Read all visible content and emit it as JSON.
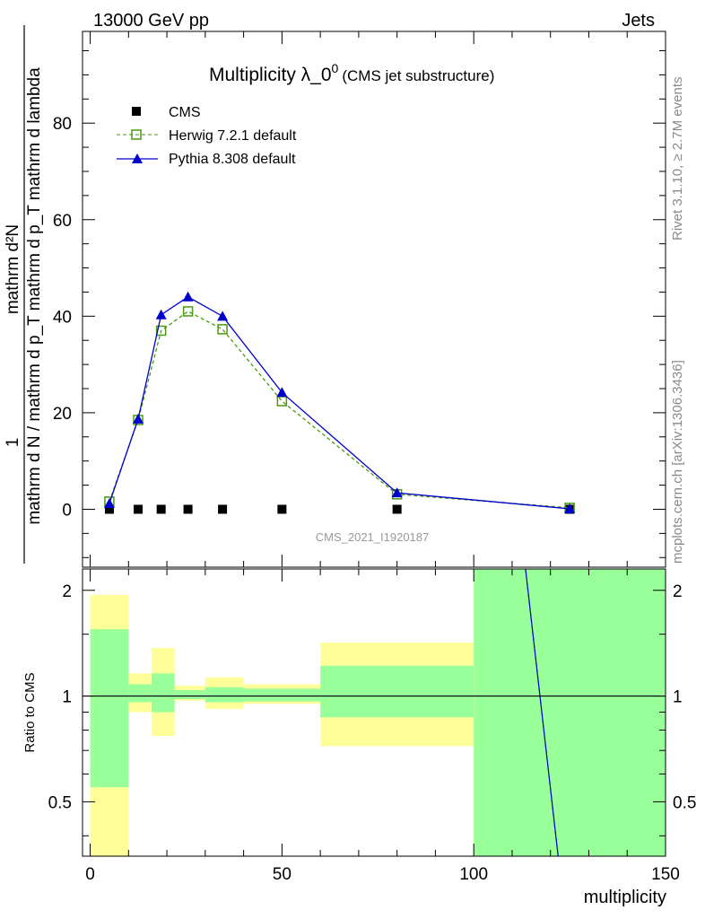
{
  "header": {
    "energy_label": "13000 GeV pp",
    "category_label": "Jets",
    "watermark": "CMS_2021_I1920187",
    "side_label_top": "Rivet 3.1.10, ≥ 2.7M events",
    "side_label_bottom": "mcplots.cern.ch [arXiv:1306.3436]"
  },
  "chart_data": [
    {
      "type": "line",
      "title": "Multiplicity λ_0",
      "title_superscript": "0",
      "subtitle": "(CMS jet substructure)",
      "ylabel_numerator": "1",
      "ylabel_denominator": "mathrm d N / mathrm d p_T mathrm d p_T mathrm d lambda",
      "ylabel_top": "mathrm d²N",
      "xlim": [
        -2,
        150
      ],
      "ylim": [
        -12,
        99
      ],
      "yticks": [
        0,
        20,
        40,
        60,
        80
      ],
      "legend_position": "top-left",
      "series": [
        {
          "name": "CMS",
          "marker": "filled-square",
          "color": "#000000",
          "x": [
            5,
            12.5,
            18.5,
            25.5,
            34.5,
            50,
            80,
            125
          ],
          "y": [
            0,
            0,
            0,
            0,
            0,
            0,
            0,
            0
          ]
        },
        {
          "name": "Herwig 7.2.1 default",
          "marker": "open-square",
          "line": "dashed",
          "color": "#4a9a10",
          "x": [
            5,
            12.5,
            18.5,
            25.5,
            34.5,
            50,
            80,
            125
          ],
          "y": [
            1.6,
            18.5,
            37.0,
            41.0,
            37.3,
            22.4,
            3.1,
            0.3
          ]
        },
        {
          "name": "Pythia 8.308 default",
          "marker": "filled-triangle",
          "line": "solid",
          "color": "#0000cc",
          "x": [
            5,
            12.5,
            18.5,
            25.5,
            34.5,
            50,
            80,
            125
          ],
          "y": [
            1.2,
            18.7,
            40.3,
            44.0,
            40.0,
            24.2,
            3.4,
            0.1
          ]
        }
      ]
    },
    {
      "type": "area",
      "ylabel": "Ratio to CMS",
      "xlabel": "multiplicity",
      "xlim": [
        -2,
        150
      ],
      "ylim": [
        0.35,
        2.3
      ],
      "xticks": [
        0,
        50,
        100,
        150
      ],
      "yticks": [
        0.5,
        1,
        2
      ],
      "reference_line": 1,
      "bands": [
        {
          "x0": 0,
          "x1": 10,
          "y2_lo": 0.0,
          "y2_hi": 1.94,
          "y1_lo": 0.55,
          "y1_hi": 1.55
        },
        {
          "x0": 10,
          "x1": 16,
          "y2_lo": 0.9,
          "y2_hi": 1.16,
          "y1_lo": 0.96,
          "y1_hi": 1.08
        },
        {
          "x0": 16,
          "x1": 22,
          "y2_lo": 0.77,
          "y2_hi": 1.37,
          "y1_lo": 0.9,
          "y1_hi": 1.16
        },
        {
          "x0": 22,
          "x1": 30,
          "y2_lo": 0.97,
          "y2_hi": 1.07,
          "y1_lo": 0.98,
          "y1_hi": 1.04
        },
        {
          "x0": 30,
          "x1": 40,
          "y2_lo": 0.92,
          "y2_hi": 1.13,
          "y1_lo": 0.96,
          "y1_hi": 1.06
        },
        {
          "x0": 40,
          "x1": 60,
          "y2_lo": 0.95,
          "y2_hi": 1.08,
          "y1_lo": 0.965,
          "y1_hi": 1.05
        },
        {
          "x0": 60,
          "x1": 100,
          "y2_lo": 0.72,
          "y2_hi": 1.42,
          "y1_lo": 0.87,
          "y1_hi": 1.22
        },
        {
          "x0": 100,
          "x1": 150,
          "y2_lo": 0.0,
          "y2_hi": 99,
          "y1_lo": 0.0,
          "y1_hi": 99
        }
      ],
      "ratio_lines": [
        {
          "name": "Herwig 7.2.1 default",
          "color": "#4a9a10",
          "x": [
            113.5,
            122
          ],
          "y": [
            2.35,
            0.34
          ]
        },
        {
          "name": "Pythia 8.308 default",
          "color": "#0000cc",
          "x": [
            113.5,
            122
          ],
          "y": [
            2.35,
            0.34
          ]
        }
      ]
    }
  ],
  "colors": {
    "band_outer": "#ffff99",
    "band_inner": "#99ff99"
  }
}
